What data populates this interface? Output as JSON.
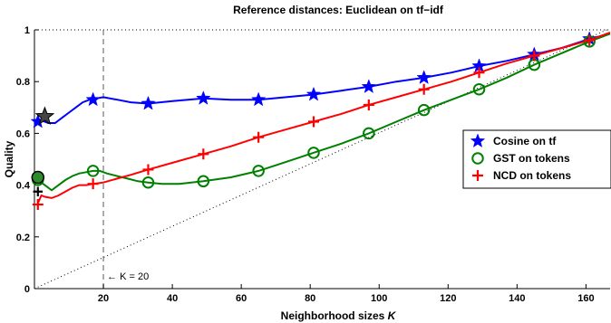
{
  "chart_data": {
    "type": "line",
    "title": "Reference distances: Euclidean on tf−idf",
    "xlabel": "Neighborhood sizes K",
    "xlabel_prefix": "Neighborhood sizes ",
    "xlabel_var": "K",
    "ylabel": "Quality",
    "xlim": [
      0,
      167
    ],
    "ylim": [
      0,
      1
    ],
    "xticks": [
      20,
      40,
      60,
      80,
      100,
      120,
      140,
      160
    ],
    "yticks": [
      0,
      0.2,
      0.4,
      0.6,
      0.8,
      1
    ],
    "ytick_labels": [
      "0",
      "0.2",
      "0.4",
      "0.6",
      "0.8",
      "1"
    ],
    "grid": false,
    "legend_position": "center-right",
    "annotation": {
      "x": 20,
      "text": "← K = 20"
    },
    "series": [
      {
        "name": "Cosine on tf",
        "color": "#0000ff",
        "marker": "star",
        "x": [
          1,
          2,
          4,
          6,
          8,
          10,
          12,
          14,
          16,
          18,
          20,
          24,
          28,
          33,
          40,
          49,
          57,
          65,
          73,
          81,
          89,
          97,
          105,
          113,
          121,
          129,
          137,
          145,
          153,
          161,
          167
        ],
        "y": [
          0.64,
          0.65,
          0.64,
          0.64,
          0.66,
          0.68,
          0.7,
          0.72,
          0.73,
          0.735,
          0.74,
          0.73,
          0.72,
          0.715,
          0.725,
          0.735,
          0.73,
          0.73,
          0.74,
          0.75,
          0.765,
          0.78,
          0.8,
          0.815,
          0.835,
          0.86,
          0.88,
          0.905,
          0.93,
          0.965,
          0.985
        ],
        "marker_x": [
          1,
          17,
          33,
          49,
          65,
          81,
          97,
          113,
          129,
          145,
          161
        ],
        "marker_y": [
          0.645,
          0.73,
          0.715,
          0.735,
          0.73,
          0.75,
          0.78,
          0.815,
          0.86,
          0.905,
          0.965
        ]
      },
      {
        "name": "GST on tokens",
        "color": "#008000",
        "marker": "circle",
        "x": [
          1,
          3,
          5,
          7,
          9,
          11,
          13,
          15,
          17,
          19,
          21,
          24,
          27,
          30,
          33,
          37,
          42,
          49,
          57,
          65,
          73,
          81,
          89,
          97,
          105,
          113,
          121,
          129,
          137,
          145,
          153,
          161,
          167
        ],
        "y": [
          0.42,
          0.4,
          0.38,
          0.4,
          0.42,
          0.435,
          0.445,
          0.45,
          0.455,
          0.455,
          0.445,
          0.435,
          0.425,
          0.415,
          0.41,
          0.405,
          0.405,
          0.415,
          0.43,
          0.455,
          0.49,
          0.525,
          0.56,
          0.6,
          0.645,
          0.69,
          0.73,
          0.77,
          0.815,
          0.865,
          0.91,
          0.955,
          0.985
        ],
        "marker_x": [
          1,
          17,
          33,
          49,
          65,
          81,
          97,
          113,
          129,
          145,
          161
        ],
        "marker_y": [
          0.42,
          0.455,
          0.41,
          0.415,
          0.455,
          0.525,
          0.6,
          0.69,
          0.77,
          0.865,
          0.955
        ]
      },
      {
        "name": "NCD on tokens",
        "color": "#ff0000",
        "marker": "plus",
        "x": [
          1,
          2,
          3,
          5,
          7,
          9,
          11,
          13,
          15,
          17,
          20,
          24,
          28,
          33,
          41,
          49,
          57,
          65,
          73,
          81,
          89,
          97,
          105,
          113,
          121,
          129,
          137,
          145,
          153,
          161,
          167
        ],
        "y": [
          0.33,
          0.36,
          0.355,
          0.35,
          0.36,
          0.375,
          0.39,
          0.4,
          0.4,
          0.405,
          0.41,
          0.425,
          0.44,
          0.46,
          0.49,
          0.52,
          0.55,
          0.585,
          0.615,
          0.645,
          0.675,
          0.71,
          0.74,
          0.77,
          0.8,
          0.835,
          0.87,
          0.9,
          0.93,
          0.96,
          0.99
        ],
        "marker_x": [
          1,
          17,
          33,
          49,
          65,
          81,
          97,
          113,
          129,
          145,
          161
        ],
        "marker_y": [
          0.325,
          0.405,
          0.46,
          0.52,
          0.585,
          0.645,
          0.71,
          0.77,
          0.835,
          0.9,
          0.96
        ]
      }
    ],
    "reference_markers": [
      {
        "marker": "star",
        "x": 3,
        "y": 0.665,
        "color": "#333333"
      },
      {
        "marker": "circle",
        "x": 1,
        "y": 0.43,
        "color": "#1a5e1a"
      },
      {
        "marker": "plus",
        "x": 1,
        "y": 0.375,
        "color": "#000000"
      }
    ]
  }
}
